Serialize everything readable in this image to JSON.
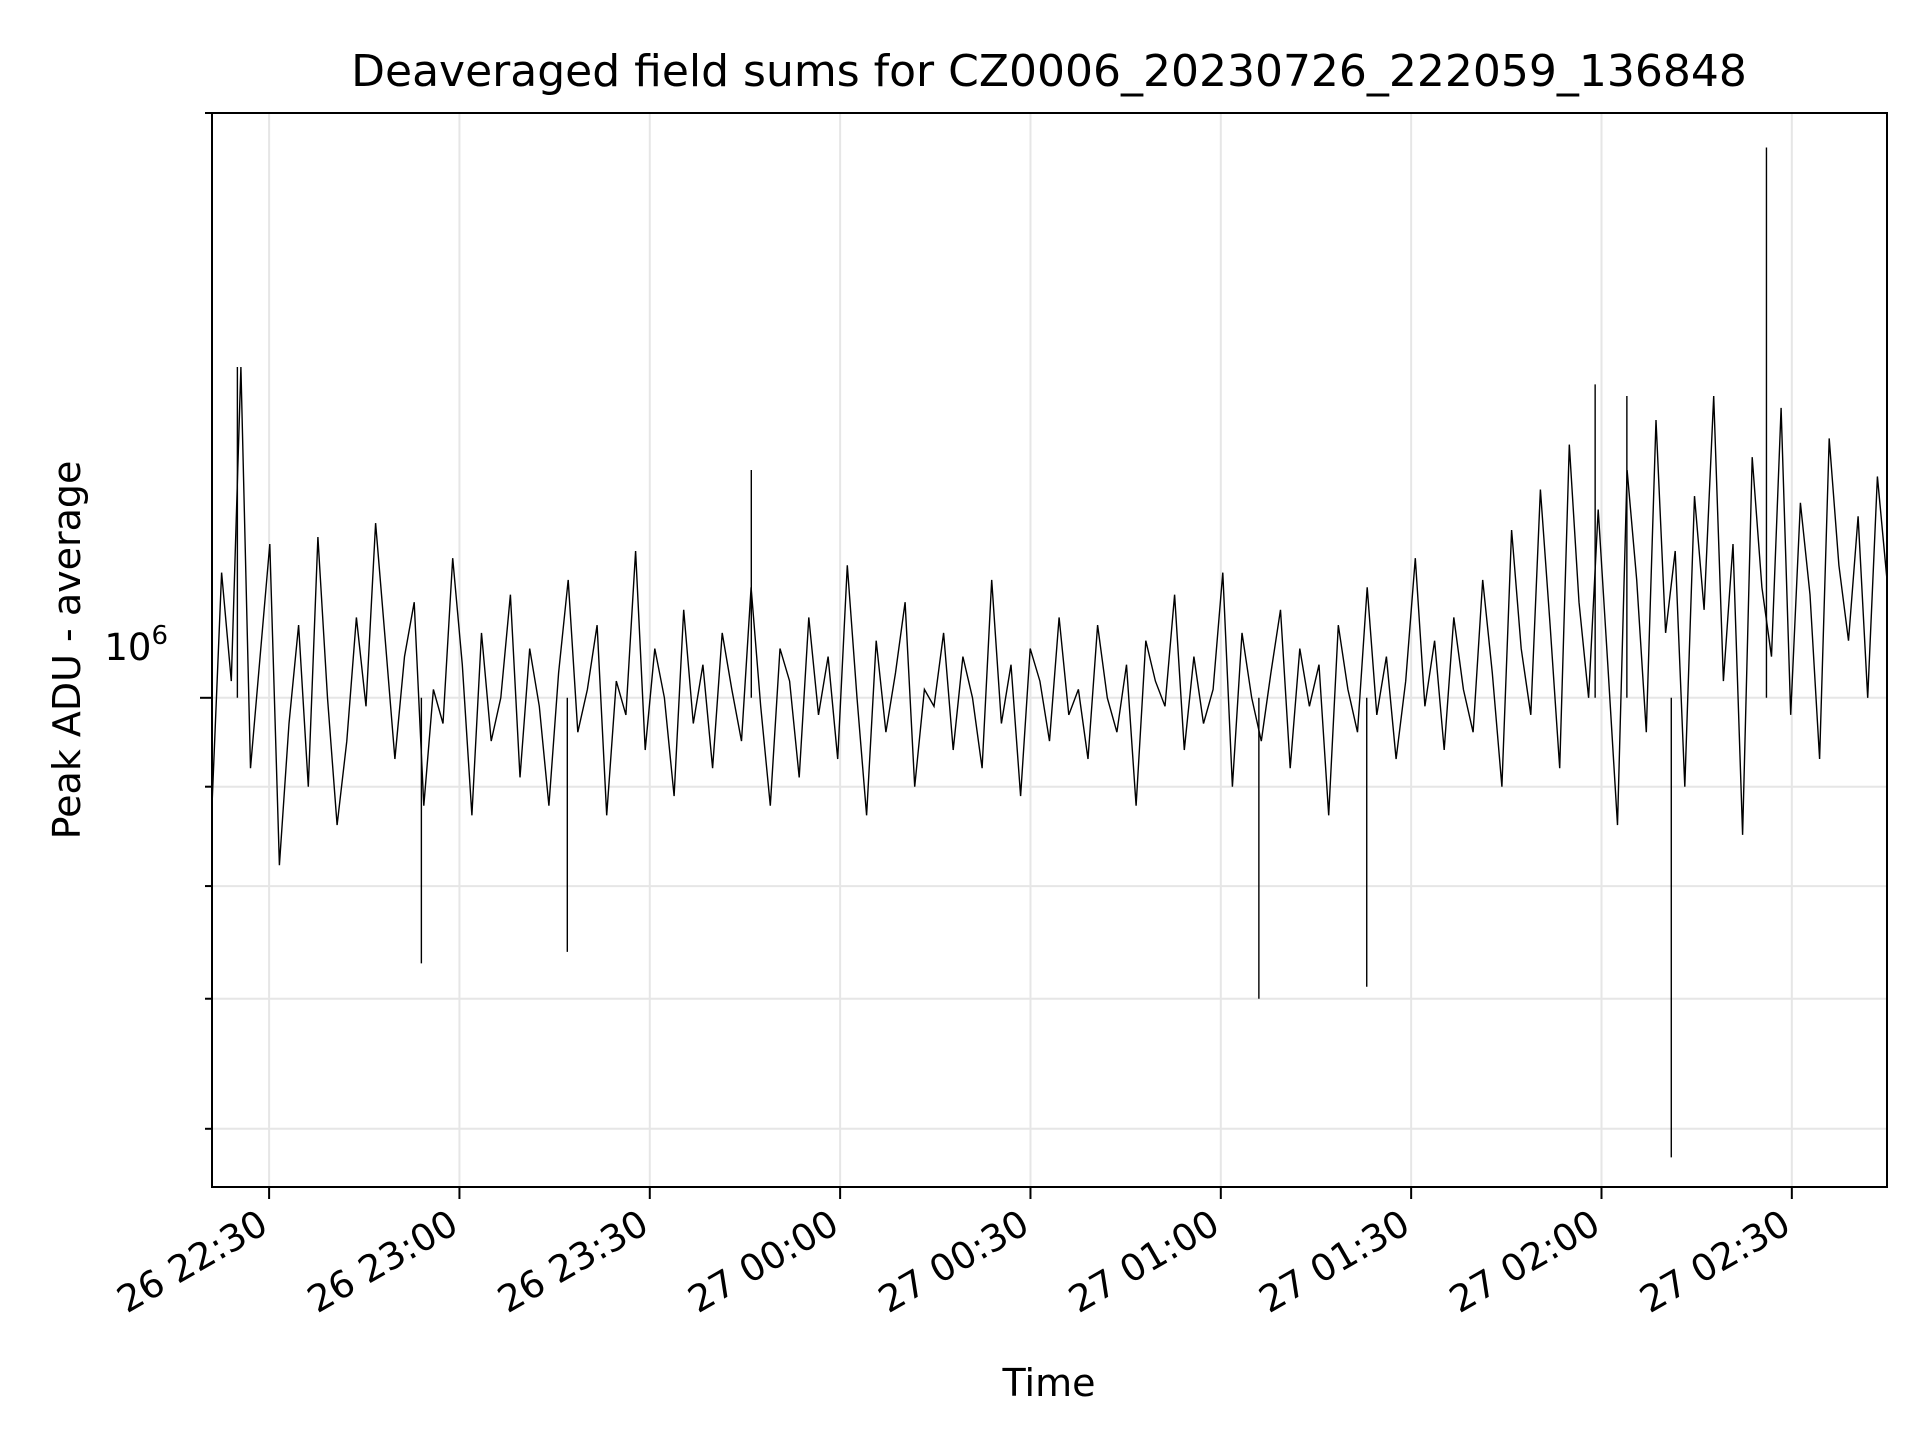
{
  "chart_data": {
    "type": "line",
    "title": "Deaveraged field sums for CZ0006_20230726_222059_136848",
    "xlabel": "Time",
    "ylabel": "Peak ADU - average",
    "y_scale": "log",
    "grid": true,
    "legend": "none",
    "x_tick_labels": [
      "26 22:30",
      "26 23:00",
      "26 23:30",
      "27 00:00",
      "27 00:30",
      "27 01:00",
      "27 01:30",
      "27 02:00",
      "27 02:30"
    ],
    "x_ticks": [
      "2023-07-26 22:30",
      "2023-07-26 23:00",
      "2023-07-26 23:30",
      "2023-07-27 00:00",
      "2023-07-27 00:30",
      "2023-07-27 01:00",
      "2023-07-27 01:30",
      "2023-07-27 02:00",
      "2023-07-27 02:30"
    ],
    "xlim": [
      "2023-07-26 22:21",
      "2023-07-27 02:45"
    ],
    "y_tick_label": {
      "base": "10",
      "exponent": "6"
    },
    "ylim": [
      560000,
      2000000
    ],
    "line_color": "#000000",
    "series": [
      {
        "x_start": "2023-07-26 22:21",
        "x_end": "2023-07-27 02:45",
        "values": [
          880000,
          1160000,
          1020000,
          1480000,
          920000,
          1050000,
          1200000,
          820000,
          970000,
          1090000,
          900000,
          1210000,
          1000000,
          860000,
          950000,
          1100000,
          990000,
          1230000,
          1070000,
          930000,
          1050000,
          1120000,
          880000,
          1010000,
          970000,
          1180000,
          1040000,
          870000,
          1080000,
          950000,
          1000000,
          1130000,
          910000,
          1060000,
          990000,
          880000,
          1030000,
          1150000,
          960000,
          1010000,
          1090000,
          870000,
          1020000,
          980000,
          1190000,
          940000,
          1060000,
          1000000,
          890000,
          1110000,
          970000,
          1040000,
          920000,
          1080000,
          1010000,
          950000,
          1140000,
          990000,
          880000,
          1060000,
          1020000,
          910000,
          1100000,
          980000,
          1050000,
          930000,
          1170000,
          1000000,
          870000,
          1070000,
          960000,
          1030000,
          1120000,
          900000,
          1010000,
          990000,
          1080000,
          940000,
          1050000,
          1000000,
          920000,
          1150000,
          970000,
          1040000,
          890000,
          1060000,
          1020000,
          950000,
          1100000,
          980000,
          1010000,
          930000,
          1090000,
          1000000,
          960000,
          1040000,
          880000,
          1070000,
          1020000,
          990000,
          1130000,
          940000,
          1050000,
          970000,
          1010000,
          1160000,
          900000,
          1080000,
          1000000,
          950000,
          1030000,
          1110000,
          920000,
          1060000,
          990000,
          1040000,
          870000,
          1090000,
          1010000,
          960000,
          1140000,
          980000,
          1050000,
          930000,
          1020000,
          1180000,
          990000,
          1070000,
          940000,
          1100000,
          1010000,
          960000,
          1150000,
          1030000,
          900000,
          1220000,
          1060000,
          980000,
          1280000,
          1090000,
          920000,
          1350000,
          1120000,
          1000000,
          1250000,
          1040000,
          860000,
          1310000,
          1150000,
          960000,
          1390000,
          1080000,
          1190000,
          900000,
          1270000,
          1110000,
          1430000,
          1020000,
          1200000,
          850000,
          1330000,
          1140000,
          1050000,
          1410000,
          980000,
          1260000,
          1130000,
          930000,
          1360000,
          1170000,
          1070000,
          1240000,
          1000000,
          1300000,
          1150000
        ]
      }
    ],
    "annotations": [
      {
        "x": "2023-07-26 22:25",
        "y": 1480000
      },
      {
        "x": "2023-07-26 22:54",
        "y": 730000
      },
      {
        "x": "2023-07-26 23:17",
        "y": 740000
      },
      {
        "x": "2023-07-26 23:46",
        "y": 1310000
      },
      {
        "x": "2023-07-27 01:06",
        "y": 700000
      },
      {
        "x": "2023-07-27 01:23",
        "y": 710000
      },
      {
        "x": "2023-07-27 01:59",
        "y": 1450000
      },
      {
        "x": "2023-07-27 02:04",
        "y": 1430000
      },
      {
        "x": "2023-07-27 02:11",
        "y": 580000
      },
      {
        "x": "2023-07-27 02:26",
        "y": 1920000
      }
    ]
  }
}
